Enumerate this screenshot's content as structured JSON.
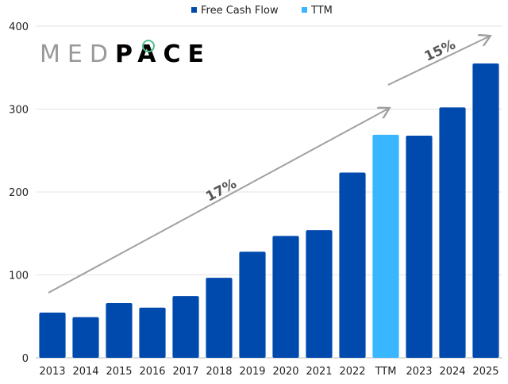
{
  "chart_data": {
    "type": "bar",
    "title": "",
    "xlabel": "",
    "ylabel": "",
    "ylim": [
      0,
      400
    ],
    "yticks": [
      0,
      100,
      200,
      300,
      400
    ],
    "grid": true,
    "legend_placement": "top-center",
    "categories": [
      "2013",
      "2014",
      "2015",
      "2016",
      "2017",
      "2018",
      "2019",
      "2020",
      "2021",
      "2022",
      "TTM",
      "2023",
      "2024",
      "2025"
    ],
    "values": [
      54.5,
      49,
      66,
      60.5,
      74.5,
      96.5,
      128,
      147,
      154,
      223.5,
      269,
      268,
      302,
      355
    ],
    "bar_series": [
      "Free Cash Flow",
      "Free Cash Flow",
      "Free Cash Flow",
      "Free Cash Flow",
      "Free Cash Flow",
      "Free Cash Flow",
      "Free Cash Flow",
      "Free Cash Flow",
      "Free Cash Flow",
      "Free Cash Flow",
      "TTM",
      "Free Cash Flow",
      "Free Cash Flow",
      "Free Cash Flow"
    ],
    "legend": [
      {
        "name": "Free Cash Flow",
        "color": "#004AAD"
      },
      {
        "name": "TTM",
        "color": "#38B6FF"
      }
    ],
    "annotations": [
      {
        "text": "17%",
        "type": "growth-arrow"
      },
      {
        "text": "15%",
        "type": "growth-arrow"
      }
    ],
    "logo_text": "MEDPACE",
    "colors": {
      "gridline": "#e3e3e3",
      "arrow": "#a0a0a0",
      "annotation_text": "#555555",
      "logo_accent": "#4fc08d"
    }
  }
}
